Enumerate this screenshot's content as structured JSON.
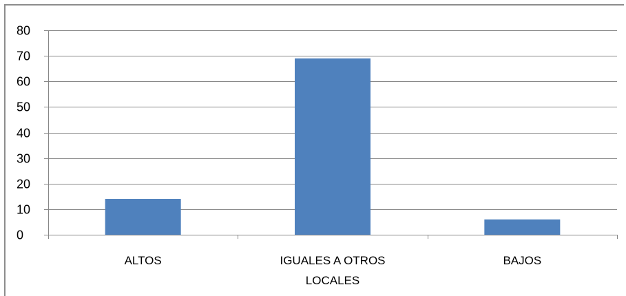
{
  "chart_data": {
    "type": "bar",
    "categories": [
      "ALTOS",
      "IGUALES A OTROS LOCALES",
      "BAJOS"
    ],
    "category_label_lines": [
      [
        "ALTOS"
      ],
      [
        "IGUALES A OTROS",
        "LOCALES"
      ],
      [
        "BAJOS"
      ]
    ],
    "values": [
      14,
      69,
      6
    ],
    "title": "",
    "xlabel": "",
    "ylabel": "",
    "ylim": [
      0,
      80
    ],
    "yticks": [
      0,
      10,
      20,
      30,
      40,
      50,
      60,
      70,
      80
    ],
    "grid": true,
    "legend": "none",
    "bar_color": "#4f81bd",
    "grid_color": "#868686"
  }
}
